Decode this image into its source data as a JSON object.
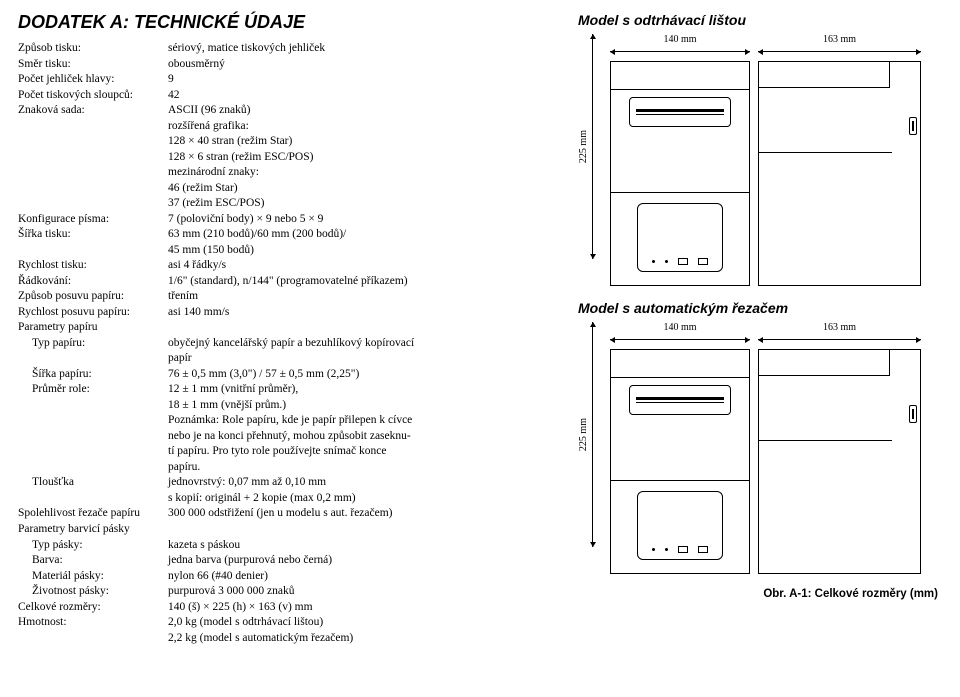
{
  "title": "DODATEK A: TECHNICKÉ ÚDAJE",
  "specs": [
    {
      "label": "Způsob tisku:",
      "value": "sériový, matice tiskových jehliček"
    },
    {
      "label": "Směr tisku:",
      "value": "obousměrný"
    },
    {
      "label": "Počet jehliček hlavy:",
      "value": "9"
    },
    {
      "label": "Počet tiskových sloupců:",
      "value": "42"
    },
    {
      "label": "Znaková sada:",
      "value": "ASCII (96 znaků)"
    },
    {
      "label": "",
      "value": "rozšířená grafika:"
    },
    {
      "label": "",
      "value": "128 × 40 stran (režim Star)"
    },
    {
      "label": "",
      "value": "128 × 6 stran (režim ESC/POS)"
    },
    {
      "label": "",
      "value": "mezinárodní znaky:"
    },
    {
      "label": "",
      "value": "46 (režim Star)"
    },
    {
      "label": "",
      "value": "37 (režim ESC/POS)"
    },
    {
      "label": "Konfigurace písma:",
      "value": "7 (poloviční body) × 9 nebo 5 × 9"
    },
    {
      "label": "Šířka tisku:",
      "value": "63 mm (210 bodů)/60 mm (200 bodů)/"
    },
    {
      "label": "",
      "value": "45 mm (150 bodů)"
    },
    {
      "label": "Rychlost tisku:",
      "value": "asi 4 řádky/s"
    },
    {
      "label": "Řádkování:",
      "value": "1/6\" (standard), n/144\" (programovatelné příkazem)"
    },
    {
      "label": "Způsob posuvu papíru:",
      "value": "třením"
    },
    {
      "label": "Rychlost posuvu papíru:",
      "value": "asi 140 mm/s"
    },
    {
      "label": "Parametry papíru",
      "value": ""
    },
    {
      "label": "Typ papíru:",
      "value": "obyčejný kancelářský papír a bezuhlíkový kopírovací",
      "indent": true
    },
    {
      "label": "",
      "value": "papír"
    },
    {
      "label": "Šířka papíru:",
      "value": "76 ± 0,5 mm (3,0\") / 57 ± 0,5 mm (2,25\")",
      "indent": true
    },
    {
      "label": "Průměr role:",
      "value": "12 ± 1 mm (vnitřní průměr),",
      "indent": true
    },
    {
      "label": "",
      "value": "18 ± 1 mm (vnější prům.)"
    },
    {
      "label": "",
      "value": "Poznámka: Role papíru, kde je papír přilepen k cívce"
    },
    {
      "label": "",
      "value": "nebo je na konci přehnutý, mohou způsobit zaseknu-"
    },
    {
      "label": "",
      "value": "tí papíru. Pro tyto role používejte snímač konce"
    },
    {
      "label": "",
      "value": "papíru."
    },
    {
      "label": "Tloušťka",
      "value": "jednovrstvý: 0,07 mm až 0,10 mm",
      "indent": true
    },
    {
      "label": "",
      "value": "s kopií: originál + 2 kopie (max 0,2 mm)"
    },
    {
      "label": "Spolehlivost řezače papíru",
      "value": "300 000 odstřižení (jen u modelu s aut. řezačem)"
    },
    {
      "label": "Parametry barvicí pásky",
      "value": ""
    },
    {
      "label": "Typ pásky:",
      "value": "kazeta s páskou",
      "indent": true
    },
    {
      "label": "Barva:",
      "value": "jedna barva (purpurová nebo černá)",
      "indent": true
    },
    {
      "label": "Materiál pásky:",
      "value": "nylon 66 (#40 denier)",
      "indent": true
    },
    {
      "label": "Životnost pásky:",
      "value": "purpurová 3 000 000 znaků",
      "indent": true
    },
    {
      "label": "Celkové rozměry:",
      "value": "140 (š) × 225 (h) × 163 (v) mm"
    },
    {
      "label": "Hmotnost:",
      "value": "2,0 kg (model s odtrhávací lištou)"
    },
    {
      "label": "",
      "value": "2,2 kg (model s automatickým řezačem)"
    }
  ],
  "model1": {
    "title": "Model s odtrhávací lištou",
    "dim_w": "140 mm",
    "dim_d": "163 mm",
    "dim_h": "225 mm"
  },
  "model2": {
    "title": "Model s automatickým řezačem",
    "dim_w": "140 mm",
    "dim_d": "163 mm",
    "dim_h": "225 mm"
  },
  "figure_caption": "Obr. A-1: Celkové rozměry (mm)"
}
